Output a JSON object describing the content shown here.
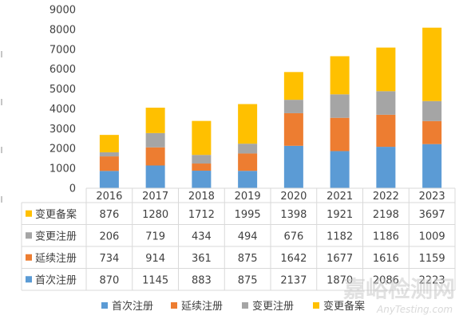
{
  "chart_data": {
    "type": "bar",
    "stacked": true,
    "categories": [
      "2016",
      "2017",
      "2018",
      "2019",
      "2020",
      "2021",
      "2022",
      "2023"
    ],
    "series": [
      {
        "name": "首次注册",
        "color": "#5b9bd5",
        "values": [
          870,
          1145,
          883,
          875,
          2137,
          1870,
          2086,
          2223
        ]
      },
      {
        "name": "延续注册",
        "color": "#ed7d31",
        "values": [
          734,
          914,
          361,
          875,
          1642,
          1677,
          1616,
          1159
        ]
      },
      {
        "name": "变更注册",
        "color": "#a5a5a5",
        "values": [
          206,
          719,
          434,
          494,
          676,
          1182,
          1186,
          1009
        ]
      },
      {
        "name": "变更备案",
        "color": "#ffc000",
        "values": [
          876,
          1280,
          1712,
          1995,
          1398,
          1921,
          2198,
          3697
        ]
      }
    ],
    "ylim": [
      0,
      9000
    ],
    "yticks": [
      "0",
      "1000",
      "2000",
      "3000",
      "4000",
      "5000",
      "6000",
      "7000",
      "8000",
      "9000"
    ],
    "grid": false,
    "legend_position": "bottom",
    "data_table": true
  },
  "watermark": {
    "cn": "嘉峪检测网",
    "en": "AnyTesting.com"
  }
}
